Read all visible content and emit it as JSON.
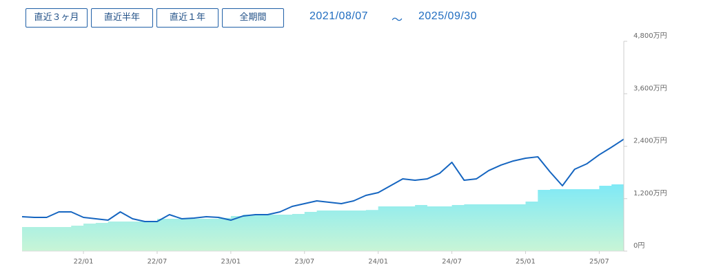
{
  "buttons": [
    "直近３ヶ月",
    "直近半年",
    "直近１年",
    "全期間"
  ],
  "date_range": {
    "start": "2021/08/07",
    "separator": "～",
    "end": "2025/09/30"
  },
  "chart_data": {
    "type": "line",
    "categories": [
      null,
      null,
      null,
      null,
      null,
      "22/01",
      null,
      null,
      null,
      null,
      null,
      "22/07",
      null,
      null,
      null,
      null,
      null,
      "23/01",
      null,
      null,
      null,
      null,
      null,
      "23/07",
      null,
      null,
      null,
      null,
      null,
      "24/01",
      null,
      null,
      null,
      null,
      null,
      "24/07",
      null,
      null,
      null,
      null,
      null,
      "25/01",
      null,
      null,
      null,
      null,
      null,
      "25/07",
      null,
      null
    ],
    "series": [
      {
        "type": "area",
        "colors": [
          "#7fe9f6",
          "#c8f5d6"
        ],
        "values": [
          551,
          551,
          551,
          551,
          582,
          630,
          645,
          677,
          677,
          677,
          677,
          740,
          740,
          740,
          740,
          740,
          760,
          803,
          834,
          834,
          834,
          834,
          850,
          897,
          929,
          929,
          929,
          929,
          940,
          1023,
          1023,
          1023,
          1055,
          1023,
          1023,
          1055,
          1070,
          1070,
          1070,
          1070,
          1070,
          1133,
          1401,
          1416,
          1416,
          1416,
          1416,
          1495,
          1527,
          1527
        ]
      },
      {
        "type": "line",
        "color": "#1565c0",
        "values": [
          787,
          771,
          771,
          897,
          897,
          771,
          740,
          708,
          897,
          740,
          677,
          677,
          834,
          740,
          756,
          787,
          771,
          708,
          803,
          834,
          834,
          897,
          1023,
          1086,
          1149,
          1118,
          1086,
          1149,
          1275,
          1338,
          1495,
          1653,
          1621,
          1653,
          1779,
          2031,
          1621,
          1653,
          1842,
          1968,
          2062,
          2125,
          2157,
          1810,
          1495,
          1873,
          1999,
          2204,
          2377,
          2560
        ]
      }
    ],
    "ylim": [
      0,
      4800
    ],
    "yticks": [
      {
        "value": 0,
        "label": "0円"
      },
      {
        "value": 1200,
        "label": "1,200万円"
      },
      {
        "value": 2400,
        "label": "2,400万円"
      },
      {
        "value": 3600,
        "label": "3,600万円"
      },
      {
        "value": 4800,
        "label": "4,800万円"
      }
    ]
  }
}
